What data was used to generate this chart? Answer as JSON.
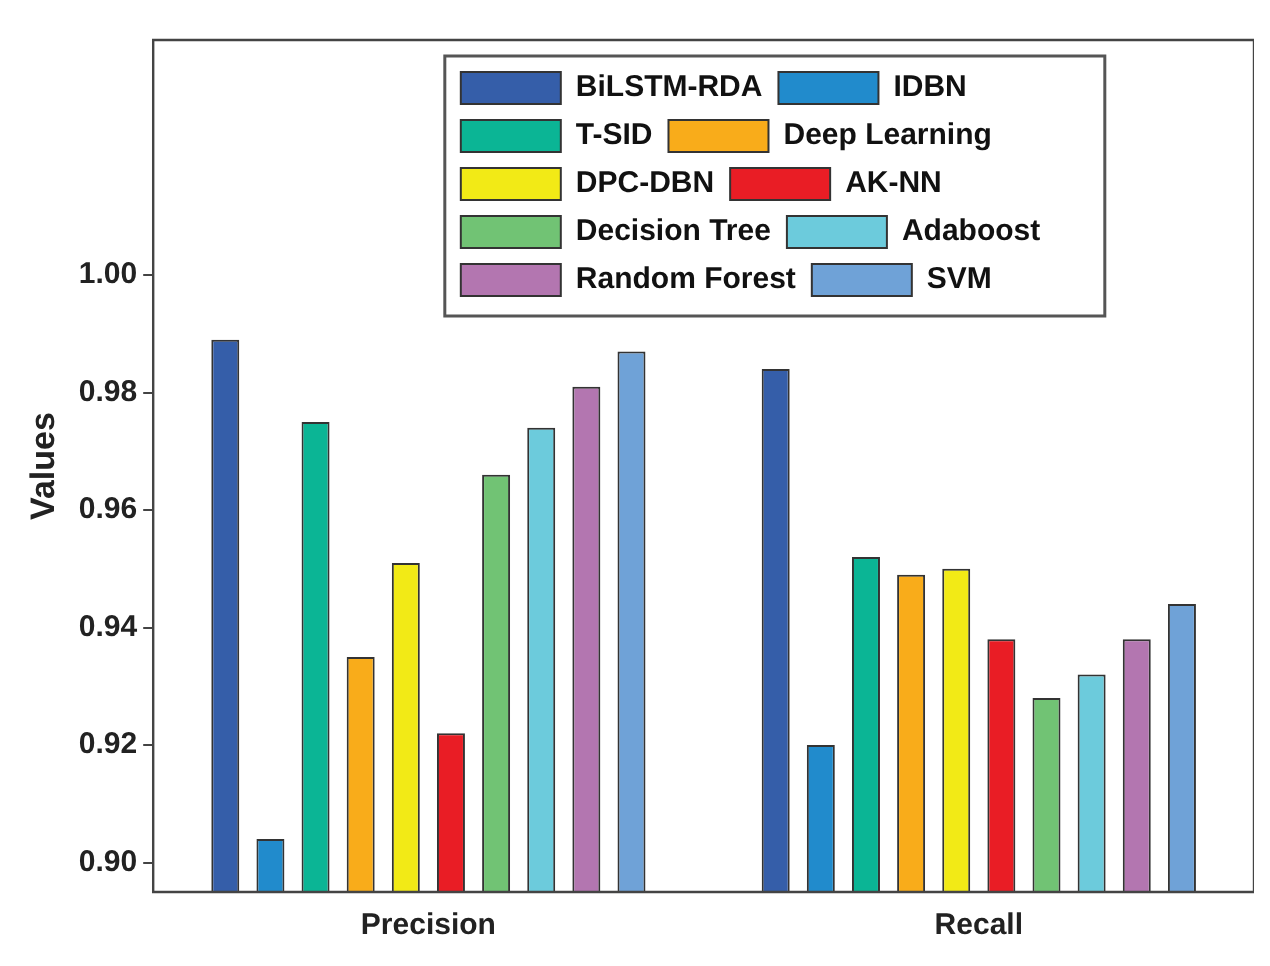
{
  "chart_data": {
    "type": "bar",
    "ylabel": "Values",
    "categories": [
      "Precision",
      "Recall"
    ],
    "series": [
      {
        "name": "BiLSTM-RDA",
        "color": "#355ea9",
        "values": [
          0.989,
          0.984
        ]
      },
      {
        "name": "IDBN",
        "color": "#218bcc",
        "values": [
          0.904,
          0.92
        ]
      },
      {
        "name": "T-SID",
        "color": "#0bb595",
        "values": [
          0.975,
          0.952
        ]
      },
      {
        "name": "Deep Learning",
        "color": "#f9ac1a",
        "values": [
          0.935,
          0.949
        ]
      },
      {
        "name": "DPC-DBN",
        "color": "#f2ea16",
        "values": [
          0.951,
          0.95
        ]
      },
      {
        "name": "AK-NN",
        "color": "#e91d25",
        "values": [
          0.922,
          0.938
        ]
      },
      {
        "name": "Decision Tree",
        "color": "#71c374",
        "values": [
          0.966,
          0.928
        ]
      },
      {
        "name": "Adaboost",
        "color": "#6ccbdc",
        "values": [
          0.974,
          0.932
        ]
      },
      {
        "name": "Random Forest",
        "color": "#b376b0",
        "values": [
          0.981,
          0.938
        ]
      },
      {
        "name": "SVM",
        "color": "#6fa2d7",
        "values": [
          0.987,
          0.944
        ]
      }
    ],
    "ylim": [
      0.895,
      1.04
    ],
    "yticks": [
      {
        "value": 0.9,
        "label": "0.90"
      },
      {
        "value": 0.92,
        "label": "0.92"
      },
      {
        "value": 0.94,
        "label": "0.94"
      },
      {
        "value": 0.96,
        "label": "0.96"
      },
      {
        "value": 0.98,
        "label": "0.98"
      },
      {
        "value": 1.0,
        "label": "1.00"
      }
    ],
    "grid": false,
    "legend": "top right"
  }
}
